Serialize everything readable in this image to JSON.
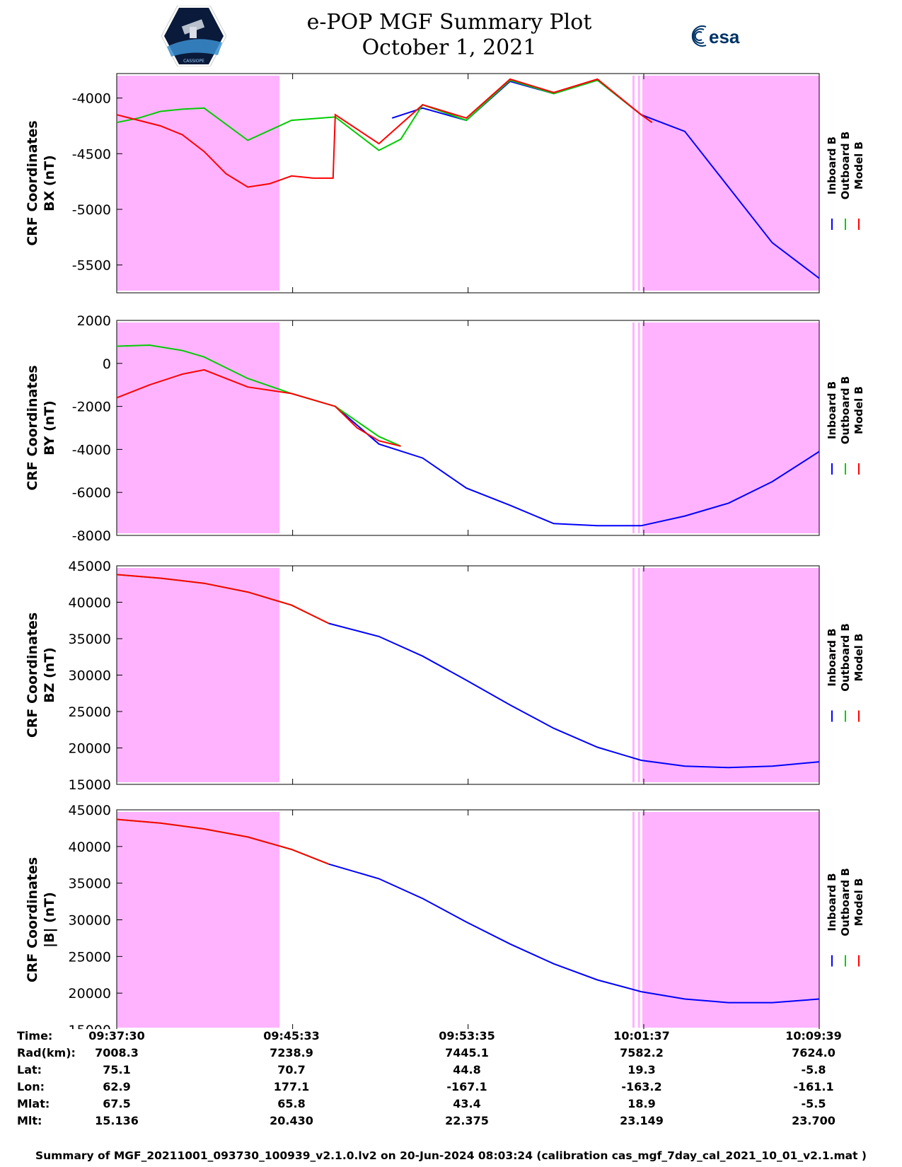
{
  "header": {
    "title_line1": "e-POP MGF Summary Plot",
    "title_line2": "October 1, 2021",
    "logo_left": "CASSIOPE",
    "logo_right": "esa"
  },
  "chart_data": [
    {
      "type": "line",
      "ylabel": [
        "CRF Coordinates",
        "BX (nT)"
      ],
      "ylim": [
        -5750,
        -3780
      ],
      "yticks": [
        -4000,
        -4500,
        -5000,
        -5500
      ],
      "x_range_minutes": [
        0,
        32.15
      ],
      "legend": [
        "Inboard B",
        "Outboard B",
        "Model B"
      ],
      "series": [
        {
          "name": "Inboard B",
          "color": "#0000ff",
          "x": [
            12.6,
            14,
            16,
            18,
            20,
            22,
            24,
            26,
            28,
            30,
            32.15
          ],
          "y": [
            -4180,
            -4090,
            -4200,
            -3850,
            -3960,
            -3840,
            -4150,
            -4300,
            -4800,
            -5300,
            -5620
          ]
        },
        {
          "name": "Outboard B",
          "color": "#00cc00",
          "x": [
            0,
            1,
            2,
            3,
            4,
            6,
            8,
            10,
            12,
            13,
            14,
            16,
            18,
            20,
            22,
            24,
            24.5
          ],
          "y": [
            -4220,
            -4180,
            -4120,
            -4100,
            -4090,
            -4380,
            -4200,
            -4170,
            -4470,
            -4370,
            -4060,
            -4200,
            -3840,
            -3960,
            -3840,
            -4150,
            -4220
          ]
        },
        {
          "name": "Model B",
          "color": "#ff0000",
          "x": [
            0,
            1,
            2,
            3,
            4,
            5,
            6,
            7,
            8,
            9,
            9.9,
            10,
            12,
            14,
            16,
            18,
            20,
            22,
            24,
            24.5
          ],
          "y": [
            -4150,
            -4200,
            -4250,
            -4330,
            -4480,
            -4680,
            -4800,
            -4770,
            -4700,
            -4720,
            -4720,
            -4150,
            -4410,
            -4060,
            -4180,
            -3830,
            -3950,
            -3830,
            -4150,
            -4220
          ]
        }
      ]
    },
    {
      "type": "line",
      "ylabel": [
        "CRF Coordinates",
        "BY (nT)"
      ],
      "ylim": [
        -8000,
        2000
      ],
      "yticks": [
        2000,
        0,
        -2000,
        -4000,
        -6000,
        -8000
      ],
      "x_range_minutes": [
        0,
        32.15
      ],
      "legend": [
        "Inboard B",
        "Outboard B",
        "Model B"
      ],
      "series": [
        {
          "name": "Inboard B",
          "color": "#0000ff",
          "x": [
            10,
            12,
            14,
            16,
            18,
            20,
            22,
            24,
            26,
            28,
            30,
            32.15
          ],
          "y": [
            -2000,
            -3750,
            -4400,
            -5800,
            -6600,
            -7450,
            -7550,
            -7550,
            -7100,
            -6500,
            -5500,
            -4100
          ]
        },
        {
          "name": "Outboard B",
          "color": "#00cc00",
          "x": [
            0,
            1.5,
            3,
            4,
            6,
            8,
            10,
            12,
            13
          ],
          "y": [
            800,
            850,
            600,
            300,
            -700,
            -1400,
            -2000,
            -3400,
            -3850
          ]
        },
        {
          "name": "Model B",
          "color": "#ff0000",
          "x": [
            0,
            1.5,
            3,
            4,
            5,
            6,
            8,
            10,
            11,
            12,
            13
          ],
          "y": [
            -1600,
            -1000,
            -500,
            -300,
            -700,
            -1100,
            -1400,
            -2000,
            -3000,
            -3600,
            -3850
          ]
        }
      ]
    },
    {
      "type": "line",
      "ylabel": [
        "CRF Coordinates",
        "BZ (nT)"
      ],
      "ylim": [
        15000,
        45000
      ],
      "yticks": [
        45000,
        40000,
        35000,
        30000,
        25000,
        20000,
        15000
      ],
      "x_range_minutes": [
        0,
        32.15
      ],
      "legend": [
        "Inboard B",
        "Outboard B",
        "Model B"
      ],
      "series": [
        {
          "name": "Inboard B",
          "color": "#0000ff",
          "x": [
            9.7,
            12,
            14,
            16,
            18,
            20,
            22,
            24,
            26,
            28,
            30,
            32.15
          ],
          "y": [
            37100,
            35300,
            32600,
            29300,
            25900,
            22700,
            20100,
            18300,
            17500,
            17300,
            17500,
            18100
          ]
        },
        {
          "name": "Outboard B",
          "color": "#00cc00",
          "x": [
            0,
            2,
            4,
            6,
            8,
            9.7
          ],
          "y": [
            43800,
            43300,
            42600,
            41400,
            39600,
            37100
          ]
        },
        {
          "name": "Model B",
          "color": "#ff0000",
          "x": [
            0,
            2,
            4,
            6,
            8,
            9.7
          ],
          "y": [
            43800,
            43300,
            42600,
            41400,
            39600,
            37100
          ]
        }
      ]
    },
    {
      "type": "line",
      "ylabel": [
        "CRF Coordinates",
        "|B| (nT)"
      ],
      "ylim": [
        15000,
        45000
      ],
      "yticks": [
        45000,
        40000,
        35000,
        30000,
        25000,
        20000,
        15000
      ],
      "x_range_minutes": [
        0,
        32.15
      ],
      "legend": [
        "Inboard B",
        "Outboard B",
        "Model B"
      ],
      "series": [
        {
          "name": "Inboard B",
          "color": "#0000ff",
          "x": [
            9.7,
            12,
            14,
            16,
            18,
            20,
            22,
            24,
            26,
            28,
            30,
            32.15
          ],
          "y": [
            37600,
            35600,
            32900,
            29700,
            26700,
            24000,
            21800,
            20200,
            19200,
            18700,
            18700,
            19200
          ]
        },
        {
          "name": "Outboard B",
          "color": "#00cc00",
          "x": [
            0,
            2,
            4,
            6,
            8,
            9.7
          ],
          "y": [
            43700,
            43200,
            42400,
            41300,
            39600,
            37600
          ]
        },
        {
          "name": "Model B",
          "color": "#ff0000",
          "x": [
            0,
            2,
            4,
            6,
            8,
            9.7
          ],
          "y": [
            43700,
            43200,
            42400,
            41300,
            39600,
            37600
          ]
        }
      ]
    }
  ],
  "shading": {
    "color": "#ffb3ff",
    "regions_minutes": [
      [
        0,
        7.45
      ],
      [
        23.6,
        23.7
      ],
      [
        23.85,
        23.95
      ],
      [
        24.05,
        32.15
      ]
    ]
  },
  "x_ticks_minutes": [
    8.05,
    16.08,
    24.12
  ],
  "info_table": {
    "labels": [
      "Time:",
      "Rad(km):",
      "Lat:",
      "Lon:",
      "Mlat:",
      "Mlt:"
    ],
    "columns": [
      [
        "09:37:30",
        "7008.3",
        "75.1",
        "62.9",
        "67.5",
        "15.136"
      ],
      [
        "09:45:33",
        "7238.9",
        "70.7",
        "177.1",
        "65.8",
        "20.430"
      ],
      [
        "09:53:35",
        "7445.1",
        "44.8",
        "-167.1",
        "43.4",
        "22.375"
      ],
      [
        "10:01:37",
        "7582.2",
        "19.3",
        "-163.2",
        "18.9",
        "23.149"
      ],
      [
        "10:09:39",
        "7624.0",
        "-5.8",
        "-161.1",
        "-5.5",
        "23.700"
      ]
    ]
  },
  "footer": "Summary of MGF_20211001_093730_100939_v2.1.0.lv2 on 20-Jun-2024 08:03:24 (calibration cas_mgf_7day_cal_2021_10_01_v2.1.mat )"
}
